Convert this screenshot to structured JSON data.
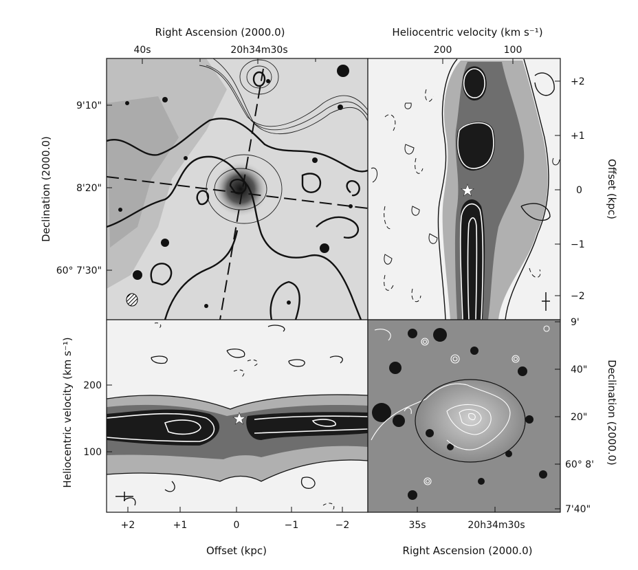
{
  "panels": {
    "top_left": {
      "axis_top_label": "Right Ascension (2000.0)",
      "axis_left_label": "Declination (2000.0)",
      "top_ticks": [
        "40s",
        "20h34m30s"
      ],
      "left_ticks": [
        "9'10\"",
        "8'20\"",
        "60° 7'30\""
      ]
    },
    "top_right": {
      "axis_top_label": "Heliocentric velocity (km s⁻¹)",
      "axis_right_label": "Offset (kpc)",
      "top_ticks": [
        "200",
        "100"
      ],
      "right_ticks": [
        "+2",
        "+1",
        "0",
        "−1",
        "−2"
      ]
    },
    "bottom_left": {
      "axis_left_label": "Heliocentric velocity (km s⁻¹)",
      "axis_bottom_label": "Offset (kpc)",
      "left_ticks": [
        "200",
        "100"
      ],
      "bottom_ticks": [
        "+2",
        "+1",
        "0",
        "−1",
        "−2"
      ]
    },
    "bottom_right": {
      "axis_bottom_label": "Right Ascension (2000.0)",
      "axis_right_label": "Declination (2000.0)",
      "bottom_ticks": [
        "35s",
        "20h34m30s"
      ],
      "right_ticks": [
        "9'",
        "40\"",
        "20\"",
        "60° 8'",
        "7'40\""
      ]
    }
  },
  "colors": {
    "frame": "#111111",
    "background": "#ffffff",
    "image_gray": "#9a9a9a",
    "contour_dark": "#111111",
    "contour_white": "#ffffff"
  }
}
